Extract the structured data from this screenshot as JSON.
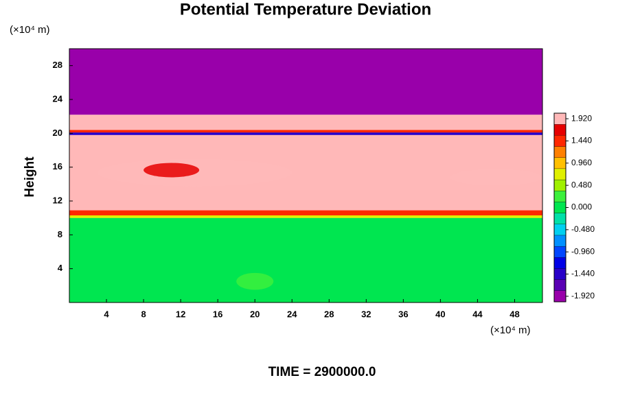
{
  "chart_data": {
    "type": "contour",
    "title": "Potential Temperature Deviation",
    "y_unit": "(×10⁴ m)",
    "x_unit": "(×10⁴ m)",
    "y_label": "Height",
    "footer": "TIME = 2900000.0",
    "xlim": [
      0,
      51
    ],
    "ylim": [
      0,
      30
    ],
    "xticks": [
      4,
      8,
      12,
      16,
      20,
      24,
      28,
      32,
      36,
      40,
      44,
      48
    ],
    "yticks": [
      4,
      8,
      12,
      16,
      20,
      24,
      28
    ],
    "layers": [
      {
        "y": [
          0,
          10
        ],
        "value": 0.1
      },
      {
        "y": [
          10,
          10.3
        ],
        "value": 0.8
      },
      {
        "y": [
          10.3,
          10.9
        ],
        "value": 1.5
      },
      {
        "y": [
          10.9,
          19.8
        ],
        "value": 2.0
      },
      {
        "y": [
          19.8,
          20.1
        ],
        "value": -1.5
      },
      {
        "y": [
          20.1,
          20.4
        ],
        "value": 1.4
      },
      {
        "y": [
          20.4,
          22.2
        ],
        "value": 2.0
      },
      {
        "y": [
          22.2,
          30
        ],
        "value": -2.0
      }
    ],
    "patches": [
      {
        "x": [
          3,
          24
        ],
        "y": [
          13.7,
          17
        ],
        "value": 1.8
      },
      {
        "x": [
          8,
          14
        ],
        "y": [
          14.8,
          16.5
        ],
        "value": 1.7
      },
      {
        "x": [
          41,
          51
        ],
        "y": [
          13.8,
          15.8
        ],
        "value": 1.8
      },
      {
        "x": [
          18,
          22
        ],
        "y": [
          1.5,
          3.5
        ],
        "value": 0.2
      }
    ],
    "colorbar": {
      "levels": [
        -1.92,
        -1.68,
        -1.44,
        -1.2,
        -0.96,
        -0.72,
        -0.48,
        -0.24,
        0,
        0.24,
        0.48,
        0.72,
        0.96,
        1.2,
        1.44,
        1.68,
        1.92
      ],
      "colors": [
        "#9900aa",
        "#5a00b4",
        "#2800c8",
        "#0000e6",
        "#0046ff",
        "#0090ff",
        "#00d0f0",
        "#00e0a8",
        "#00e650",
        "#3cf03c",
        "#a0f000",
        "#e0f000",
        "#ffc000",
        "#ff8000",
        "#ff2800",
        "#e60000",
        "#ffb8b8"
      ],
      "ticks": [
        {
          "value": -1.92,
          "label": "-1.920"
        },
        {
          "value": -1.44,
          "label": "-1.440"
        },
        {
          "value": -0.96,
          "label": "-0.960"
        },
        {
          "value": -0.48,
          "label": "-0.480"
        },
        {
          "value": 0,
          "label": "0.000"
        },
        {
          "value": 0.48,
          "label": "0.480"
        },
        {
          "value": 0.96,
          "label": "0.960"
        },
        {
          "value": 1.44,
          "label": "1.440"
        },
        {
          "value": 1.92,
          "label": "1.920"
        }
      ]
    }
  }
}
